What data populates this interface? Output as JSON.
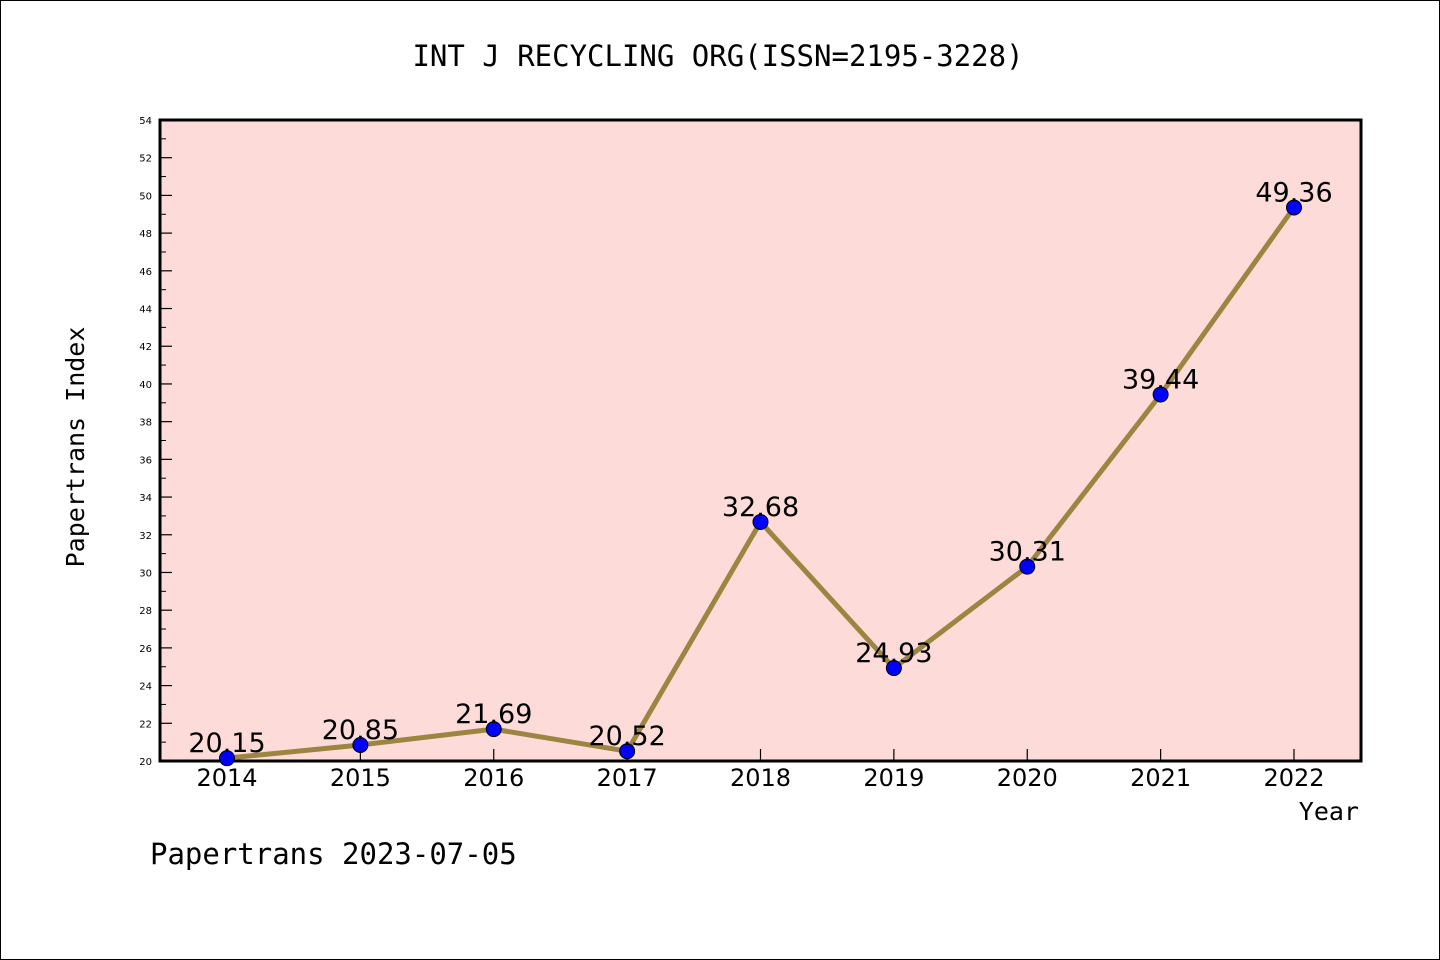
{
  "chart_data": {
    "type": "line",
    "title": "INT J RECYCLING ORG(ISSN=2195-3228)",
    "xlabel": "Year",
    "ylabel": "Papertrans Index",
    "footer": "Papertrans 2023-07-05",
    "categories": [
      "2014",
      "2015",
      "2016",
      "2017",
      "2018",
      "2019",
      "2020",
      "2021",
      "2022"
    ],
    "values": [
      20.15,
      20.85,
      21.69,
      20.52,
      32.68,
      24.93,
      30.31,
      39.44,
      49.36
    ],
    "value_labels": [
      "20.15",
      "20.85",
      "21.69",
      "20.52",
      "32.68",
      "24.93",
      "30.31",
      "39.44",
      "49.36"
    ],
    "ylim": [
      20,
      54
    ],
    "yticks": [
      "20",
      "22",
      "24",
      "26",
      "28",
      "30",
      "32",
      "34",
      "36",
      "38",
      "40",
      "42",
      "44",
      "46",
      "48",
      "50",
      "52",
      "54"
    ],
    "grid": false,
    "colors": {
      "plot_background": "#fddbd9",
      "line": "#9b8540",
      "marker": "#0000ff",
      "frame": "#000000"
    }
  }
}
